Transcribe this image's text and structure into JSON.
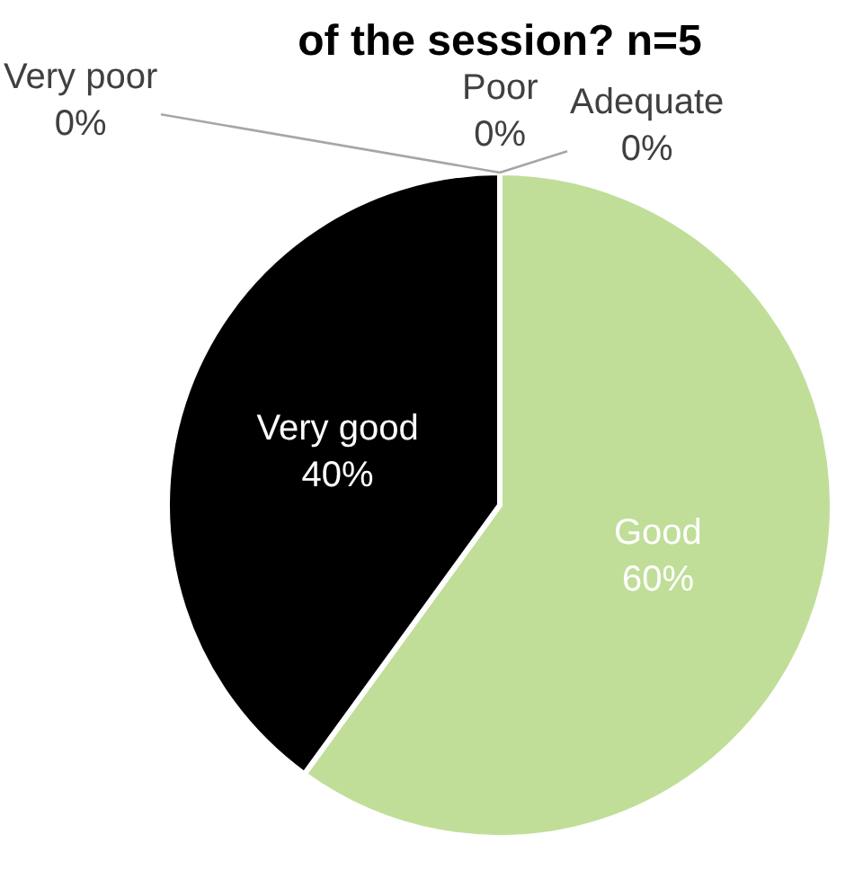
{
  "chart_data": {
    "type": "pie",
    "title": "of the session? n=5",
    "categories": [
      "Very poor",
      "Poor",
      "Adequate",
      "Good",
      "Very good"
    ],
    "values": [
      0,
      0,
      0,
      60,
      40
    ],
    "value_labels": [
      "0%",
      "0%",
      "0%",
      "60%",
      "40%"
    ],
    "colors": [
      null,
      null,
      null,
      "#c0de98",
      "#000000"
    ]
  }
}
